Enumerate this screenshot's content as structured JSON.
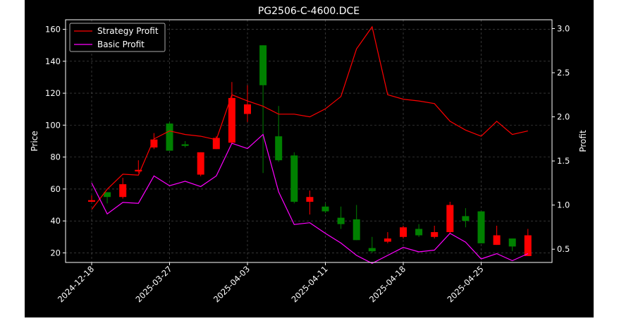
{
  "chart_data": {
    "type": "candlestick",
    "title": "PG2506-C-4600.DCE",
    "xlabel": "",
    "ylabel_left": "Price",
    "ylabel_right": "Profit",
    "ylim_left": [
      14,
      166
    ],
    "ylim_right": [
      0.35,
      3.1
    ],
    "grid": true,
    "legend_position": "top-left",
    "colors": {
      "background": "#000000",
      "up": "#008000",
      "down": "#ff0000",
      "strategy": "#ff0000",
      "basic": "#ff00ff",
      "text": "#ffffff"
    },
    "x_tick_labels": [
      "2024-12-18",
      "2025-03-27",
      "2025-04-03",
      "2025-04-11",
      "2025-04-18",
      "2025-04-25"
    ],
    "x_tick_indices": [
      0,
      5,
      10,
      15,
      20,
      25
    ],
    "y_ticks_left": [
      20,
      40,
      60,
      80,
      100,
      120,
      140,
      160
    ],
    "y_ticks_right": [
      0.5,
      1.0,
      1.5,
      2.0,
      2.5,
      3.0
    ],
    "y_tick_labels_left": [
      "20",
      "40",
      "60",
      "80",
      "100",
      "120",
      "140",
      "160"
    ],
    "y_tick_labels_right": [
      "0.5",
      "1.0",
      "1.5",
      "2.0",
      "2.5",
      "3.0"
    ],
    "candles": [
      {
        "open": 53,
        "high": 56,
        "low": 52,
        "close": 52
      },
      {
        "open": 55,
        "high": 58,
        "low": 51,
        "close": 58
      },
      {
        "open": 63,
        "high": 67,
        "low": 54,
        "close": 55
      },
      {
        "open": 72,
        "high": 78,
        "low": 70,
        "close": 71
      },
      {
        "open": 91,
        "high": 95,
        "low": 85,
        "close": 86
      },
      {
        "open": 84,
        "high": 102,
        "low": 84,
        "close": 101
      },
      {
        "open": 87,
        "high": 90,
        "low": 86,
        "close": 88
      },
      {
        "open": 83,
        "high": 83,
        "low": 68,
        "close": 69
      },
      {
        "open": 92,
        "high": 93,
        "low": 85,
        "close": 85
      },
      {
        "open": 117,
        "high": 127,
        "low": 88,
        "close": 89
      },
      {
        "open": 113,
        "high": 125,
        "low": 102,
        "close": 107
      },
      {
        "open": 125,
        "high": 150,
        "low": 70,
        "close": 150
      },
      {
        "open": 78,
        "high": 112,
        "low": 77,
        "close": 93
      },
      {
        "open": 52,
        "high": 83,
        "low": 51,
        "close": 81
      },
      {
        "open": 55,
        "high": 59,
        "low": 44,
        "close": 52
      },
      {
        "open": 46,
        "high": 51,
        "low": 45,
        "close": 49
      },
      {
        "open": 38,
        "high": 49,
        "low": 35,
        "close": 42
      },
      {
        "open": 28,
        "high": 50,
        "low": 28,
        "close": 41
      },
      {
        "open": 21,
        "high": 30,
        "low": 20,
        "close": 23
      },
      {
        "open": 29,
        "high": 33,
        "low": 26,
        "close": 27
      },
      {
        "open": 36,
        "high": 37,
        "low": 29,
        "close": 30
      },
      {
        "open": 31,
        "high": 38,
        "low": 30,
        "close": 35
      },
      {
        "open": 33,
        "high": 37,
        "low": 29,
        "close": 30
      },
      {
        "open": 50,
        "high": 52,
        "low": 32,
        "close": 33
      },
      {
        "open": 40,
        "high": 48,
        "low": 36,
        "close": 43
      },
      {
        "open": 26,
        "high": 46,
        "low": 26,
        "close": 46
      },
      {
        "open": 31,
        "high": 37,
        "low": 25,
        "close": 25
      },
      {
        "open": 24,
        "high": 29,
        "low": 21,
        "close": 29
      },
      {
        "open": 31,
        "high": 35,
        "low": 18,
        "close": 18
      }
    ],
    "series": [
      {
        "name": "Strategy Profit",
        "values": [
          0.95,
          1.18,
          1.35,
          1.34,
          1.75,
          1.84,
          1.8,
          1.78,
          1.74,
          2.25,
          2.18,
          2.12,
          2.03,
          2.03,
          2.0,
          2.09,
          2.23,
          2.77,
          3.02,
          2.25,
          2.2,
          2.18,
          2.15,
          1.95,
          1.85,
          1.78,
          1.95,
          1.8,
          1.84
        ]
      },
      {
        "name": "Basic Profit",
        "values": [
          1.25,
          0.9,
          1.03,
          1.02,
          1.33,
          1.22,
          1.27,
          1.21,
          1.33,
          1.7,
          1.64,
          1.8,
          1.15,
          0.78,
          0.8,
          0.68,
          0.57,
          0.43,
          0.34,
          0.43,
          0.52,
          0.47,
          0.49,
          0.68,
          0.58,
          0.39,
          0.45,
          0.37,
          0.45
        ]
      }
    ]
  }
}
